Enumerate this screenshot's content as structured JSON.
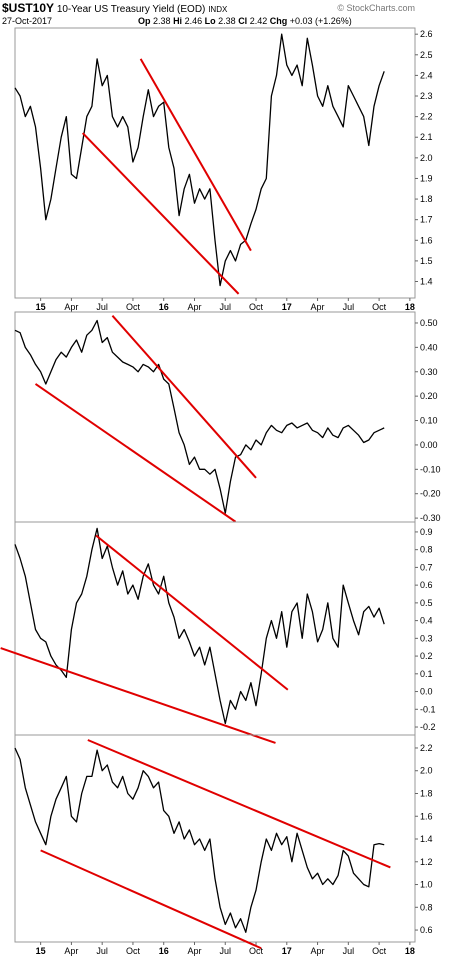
{
  "header": {
    "symbol": "$UST10Y",
    "title": "10-Year US Treasury Yield (EOD)",
    "exchange": "INDX",
    "date": "27-Oct-2017",
    "quote": [
      {
        "label": "Op",
        "value": 2.38
      },
      {
        "label": "Hi",
        "value": 2.46
      },
      {
        "label": "Lo",
        "value": 2.38
      },
      {
        "label": "Cl",
        "value": 2.42
      },
      {
        "label": "Chg",
        "value": "+0.03 (+1.26%)"
      }
    ],
    "watermark": "© StockCharts.com"
  },
  "chart_data": [
    {
      "type": "line",
      "color": "#000000",
      "trendline_color": "#e00000",
      "xlim": [
        -2.5,
        36.5
      ],
      "ylim": [
        1.32,
        2.63
      ],
      "yticks": [
        2.6,
        2.5,
        2.4,
        2.3,
        2.2,
        2.1,
        {
          "value": 2,
          "label": "2.0"
        },
        1.9,
        1.8,
        1.7,
        1.6,
        1.5,
        1.4
      ],
      "xticks": [
        {
          "value": 0,
          "label": "15"
        },
        {
          "value": 3,
          "label": "Apr"
        },
        {
          "value": 6,
          "label": "Jul"
        },
        {
          "value": 9,
          "label": "Oct"
        },
        {
          "value": 12,
          "label": "16"
        },
        {
          "value": 15,
          "label": "Apr"
        },
        {
          "value": 18,
          "label": "Jul"
        },
        {
          "value": 21,
          "label": "Oct"
        },
        {
          "value": 24,
          "label": "17"
        },
        {
          "value": 27,
          "label": "Apr"
        },
        {
          "value": 30,
          "label": "Jul"
        },
        {
          "value": 33,
          "label": "Oct"
        },
        {
          "value": 36,
          "label": "18"
        }
      ],
      "x": [
        -2.5,
        -2,
        -1.5,
        -1,
        -0.5,
        0,
        0.5,
        1,
        1.5,
        2,
        2.5,
        3,
        3.5,
        4,
        4.5,
        5,
        5.5,
        6,
        6.5,
        7,
        7.5,
        8,
        8.5,
        9,
        9.5,
        10,
        10.5,
        11,
        11.5,
        12,
        12.5,
        13,
        13.5,
        14,
        14.5,
        15,
        15.5,
        16,
        16.5,
        17,
        17.5,
        18,
        18.5,
        19,
        19.5,
        20,
        20.5,
        21,
        21.5,
        22,
        22.5,
        23,
        23.5,
        24,
        24.5,
        25,
        25.5,
        26,
        26.5,
        27,
        27.5,
        28,
        28.5,
        29,
        29.5,
        30,
        30.5,
        31,
        31.5,
        32,
        32.5,
        33,
        33.5
      ],
      "values": [
        2.34,
        2.3,
        2.2,
        2.25,
        2.15,
        1.95,
        1.7,
        1.8,
        1.95,
        2.1,
        2.2,
        1.92,
        1.9,
        2.05,
        2.2,
        2.25,
        2.48,
        2.35,
        2.4,
        2.2,
        2.15,
        2.2,
        2.15,
        1.98,
        2.05,
        2.2,
        2.33,
        2.2,
        2.25,
        2.27,
        2.05,
        1.95,
        1.72,
        1.85,
        1.92,
        1.78,
        1.85,
        1.8,
        1.85,
        1.6,
        1.38,
        1.5,
        1.55,
        1.5,
        1.58,
        1.6,
        1.68,
        1.75,
        1.85,
        1.9,
        2.3,
        2.4,
        2.6,
        2.45,
        2.4,
        2.45,
        2.35,
        2.58,
        2.45,
        2.3,
        2.25,
        2.35,
        2.25,
        2.2,
        2.15,
        2.35,
        2.3,
        2.25,
        2.2,
        2.06,
        2.25,
        2.35,
        2.42
      ],
      "trendlines": [
        {
          "x": [
            4.1,
            19.3
          ],
          "y": [
            2.12,
            1.34
          ]
        },
        {
          "x": [
            9.75,
            20.5
          ],
          "y": [
            2.48,
            1.55
          ]
        }
      ]
    },
    {
      "type": "line",
      "color": "#000000",
      "trendline_color": "#e00000",
      "xlim": [
        -2.5,
        36.5
      ],
      "ylim": [
        -0.316,
        0.545
      ],
      "yticks": [
        {
          "value": 0.5,
          "label": "0.50"
        },
        {
          "value": 0.4,
          "label": "0.40"
        },
        {
          "value": 0.3,
          "label": "0.30"
        },
        {
          "value": 0.2,
          "label": "0.20"
        },
        {
          "value": 0.1,
          "label": "0.10"
        },
        {
          "value": 0,
          "label": "0.00"
        },
        {
          "value": -0.1,
          "label": "-0.10"
        },
        {
          "value": -0.2,
          "label": "-0.20"
        },
        {
          "value": -0.3,
          "label": "-0.30"
        }
      ],
      "x": [
        -2.5,
        -2,
        -1.5,
        -1,
        -0.5,
        0,
        0.5,
        1,
        1.5,
        2,
        2.5,
        3,
        3.5,
        4,
        4.5,
        5,
        5.5,
        6,
        6.5,
        7,
        7.5,
        8,
        8.5,
        9,
        9.5,
        10,
        10.5,
        11,
        11.5,
        12,
        12.5,
        13,
        13.5,
        14,
        14.5,
        15,
        15.5,
        16,
        16.5,
        17,
        17.5,
        18,
        18.5,
        19,
        19.5,
        20,
        20.5,
        21,
        21.5,
        22,
        22.5,
        23,
        23.5,
        24,
        24.5,
        25,
        25.5,
        26,
        26.5,
        27,
        27.5,
        28,
        28.5,
        29,
        29.5,
        30,
        30.5,
        31,
        31.5,
        32,
        32.5,
        33,
        33.5
      ],
      "values": [
        0.47,
        0.46,
        0.4,
        0.37,
        0.33,
        0.3,
        0.25,
        0.3,
        0.35,
        0.38,
        0.36,
        0.4,
        0.43,
        0.38,
        0.45,
        0.47,
        0.51,
        0.42,
        0.44,
        0.38,
        0.36,
        0.34,
        0.33,
        0.32,
        0.3,
        0.33,
        0.32,
        0.3,
        0.33,
        0.27,
        0.25,
        0.15,
        0.05,
        0,
        -0.08,
        -0.05,
        -0.1,
        -0.1,
        -0.12,
        -0.1,
        -0.18,
        -0.28,
        -0.15,
        -0.05,
        -0.04,
        0,
        -0.02,
        0.02,
        0,
        0.05,
        0.08,
        0.06,
        0.05,
        0.08,
        0.09,
        0.07,
        0.08,
        0.09,
        0.06,
        0.05,
        0.03,
        0.07,
        0.04,
        0.03,
        0.07,
        0.08,
        0.06,
        0.04,
        0.01,
        0.02,
        0.05,
        0.06,
        0.07
      ],
      "trendlines": [
        {
          "x": [
            -0.5,
            19
          ],
          "y": [
            0.25,
            -0.315
          ]
        },
        {
          "x": [
            7,
            21
          ],
          "y": [
            0.53,
            -0.135
          ]
        }
      ]
    },
    {
      "type": "line",
      "color": "#000000",
      "trendline_color": "#e00000",
      "xlim": [
        -2.5,
        36.5
      ],
      "ylim": [
        -0.245,
        0.956
      ],
      "yticks": [
        0.9,
        0.8,
        0.7,
        0.6,
        0.5,
        0.4,
        0.3,
        0.2,
        0.1,
        {
          "value": 0,
          "label": "0.0"
        },
        -0.1,
        -0.2
      ],
      "x": [
        -2.5,
        -2,
        -1.5,
        -1,
        -0.5,
        0,
        0.5,
        1,
        1.5,
        2,
        2.5,
        3,
        3.5,
        4,
        4.5,
        5,
        5.5,
        6,
        6.5,
        7,
        7.5,
        8,
        8.5,
        9,
        9.5,
        10,
        10.5,
        11,
        11.5,
        12,
        12.5,
        13,
        13.5,
        14,
        14.5,
        15,
        15.5,
        16,
        16.5,
        17,
        17.5,
        18,
        18.5,
        19,
        19.5,
        20,
        20.5,
        21,
        21.5,
        22,
        22.5,
        23,
        23.5,
        24,
        24.5,
        25,
        25.5,
        26,
        26.5,
        27,
        27.5,
        28,
        28.5,
        29,
        29.5,
        30,
        30.5,
        31,
        31.5,
        32,
        32.5,
        33,
        33.5
      ],
      "values": [
        0.83,
        0.75,
        0.65,
        0.5,
        0.35,
        0.3,
        0.28,
        0.2,
        0.15,
        0.12,
        0.08,
        0.35,
        0.5,
        0.55,
        0.65,
        0.8,
        0.92,
        0.75,
        0.82,
        0.7,
        0.6,
        0.68,
        0.55,
        0.6,
        0.52,
        0.65,
        0.72,
        0.6,
        0.55,
        0.65,
        0.5,
        0.42,
        0.3,
        0.35,
        0.28,
        0.2,
        0.25,
        0.15,
        0.25,
        0.1,
        -0.05,
        -0.18,
        -0.05,
        -0.1,
        0,
        -0.05,
        0.05,
        -0.08,
        0.1,
        0.3,
        0.4,
        0.3,
        0.45,
        0.25,
        0.45,
        0.5,
        0.3,
        0.55,
        0.45,
        0.28,
        0.35,
        0.5,
        0.3,
        0.25,
        0.6,
        0.5,
        0.4,
        0.32,
        0.45,
        0.48,
        0.42,
        0.47,
        0.38
      ],
      "trendlines": [
        {
          "x": [
            -3.9,
            22.9
          ],
          "y": [
            0.245,
            -0.29
          ]
        },
        {
          "x": [
            5.4,
            24.1
          ],
          "y": [
            0.88,
            0.01
          ]
        }
      ]
    },
    {
      "type": "line",
      "color": "#000000",
      "trendline_color": "#e00000",
      "xlim": [
        -2.5,
        36.5
      ],
      "ylim": [
        0.495,
        2.314
      ],
      "yticks": [
        2.2,
        {
          "value": 2,
          "label": "2.0"
        },
        1.8,
        1.6,
        1.4,
        1.2,
        {
          "value": 1,
          "label": "1.0"
        },
        0.8,
        0.6
      ],
      "xticks": [
        {
          "value": 0,
          "label": "15"
        },
        {
          "value": 3,
          "label": "Apr"
        },
        {
          "value": 6,
          "label": "Jul"
        },
        {
          "value": 9,
          "label": "Oct"
        },
        {
          "value": 12,
          "label": "16"
        },
        {
          "value": 15,
          "label": "Apr"
        },
        {
          "value": 18,
          "label": "Jul"
        },
        {
          "value": 21,
          "label": "Oct"
        },
        {
          "value": 24,
          "label": "17"
        },
        {
          "value": 27,
          "label": "Apr"
        },
        {
          "value": 30,
          "label": "Jul"
        },
        {
          "value": 33,
          "label": "Oct"
        },
        {
          "value": 36,
          "label": "18"
        }
      ],
      "x": [
        -2.5,
        -2,
        -1.5,
        -1,
        -0.5,
        0,
        0.5,
        1,
        1.5,
        2,
        2.5,
        3,
        3.5,
        4,
        4.5,
        5,
        5.5,
        6,
        6.5,
        7,
        7.5,
        8,
        8.5,
        9,
        9.5,
        10,
        10.5,
        11,
        11.5,
        12,
        12.5,
        13,
        13.5,
        14,
        14.5,
        15,
        15.5,
        16,
        16.5,
        17,
        17.5,
        18,
        18.5,
        19,
        19.5,
        20,
        20.5,
        21,
        21.5,
        22,
        22.5,
        23,
        23.5,
        24,
        24.5,
        25,
        25.5,
        26,
        26.5,
        27,
        27.5,
        28,
        28.5,
        29,
        29.5,
        30,
        30.5,
        31,
        31.5,
        32,
        32.5,
        33,
        33.5
      ],
      "values": [
        2.2,
        2.1,
        1.85,
        1.7,
        1.55,
        1.45,
        1.35,
        1.6,
        1.75,
        1.85,
        1.95,
        1.6,
        1.55,
        1.8,
        1.95,
        1.95,
        2.18,
        2,
        2.05,
        1.9,
        1.85,
        1.95,
        1.8,
        1.75,
        1.85,
        2,
        1.95,
        1.85,
        1.9,
        1.65,
        1.6,
        1.45,
        1.55,
        1.4,
        1.48,
        1.35,
        1.4,
        1.3,
        1.4,
        1.05,
        0.8,
        0.65,
        0.75,
        0.62,
        0.7,
        0.58,
        0.8,
        0.95,
        1.2,
        1.4,
        1.3,
        1.45,
        1.35,
        1.42,
        1.2,
        1.45,
        1.3,
        1.15,
        1.05,
        1.1,
        1,
        1.05,
        1,
        1.08,
        1.3,
        1.25,
        1.1,
        1.05,
        1,
        0.98,
        1.35,
        1.36,
        1.35
      ],
      "trendlines": [
        {
          "x": [
            0,
            21.5
          ],
          "y": [
            1.3,
            0.44
          ]
        },
        {
          "x": [
            4.6,
            34.1
          ],
          "y": [
            2.27,
            1.15
          ]
        }
      ]
    }
  ]
}
